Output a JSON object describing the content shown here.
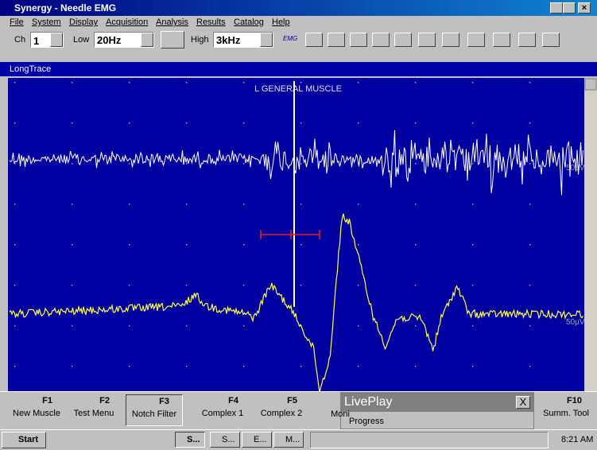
{
  "window": {
    "title": "Synergy - Needle EMG"
  },
  "menu": [
    "File",
    "System",
    "Display",
    "Acquisition",
    "Analysis",
    "Results",
    "Catalog",
    "Help"
  ],
  "toolbar": {
    "channel_label": "Ch",
    "channel": "1",
    "low_label": "Low",
    "low": "20Hz",
    "high_label": "High",
    "high": "3kHz",
    "emg_button": "EMG"
  },
  "panel": {
    "title": "LongTrace",
    "plot_title": "L GENERAL MUSCLE",
    "scale_labels": [
      "50µV",
      "50µV"
    ]
  },
  "function_keys": [
    {
      "key": "F1",
      "label": "New Muscle"
    },
    {
      "key": "F2",
      "label": "Test Menu"
    },
    {
      "key": "F3",
      "label": "Notch Filter"
    },
    {
      "key": "F4",
      "label": "Complex 1"
    },
    {
      "key": "F5",
      "label": "Complex 2"
    },
    {
      "label": "Moni"
    },
    {
      "key": "F10",
      "label": "Summ. Tool"
    }
  ],
  "popup": {
    "title": "LivePlay",
    "close": "X",
    "progress_label": "Progress"
  },
  "taskbar": {
    "start": "Start",
    "tasks": [
      "S...",
      "S...",
      "E...",
      "M..."
    ],
    "clock": "8:21 AM"
  }
}
